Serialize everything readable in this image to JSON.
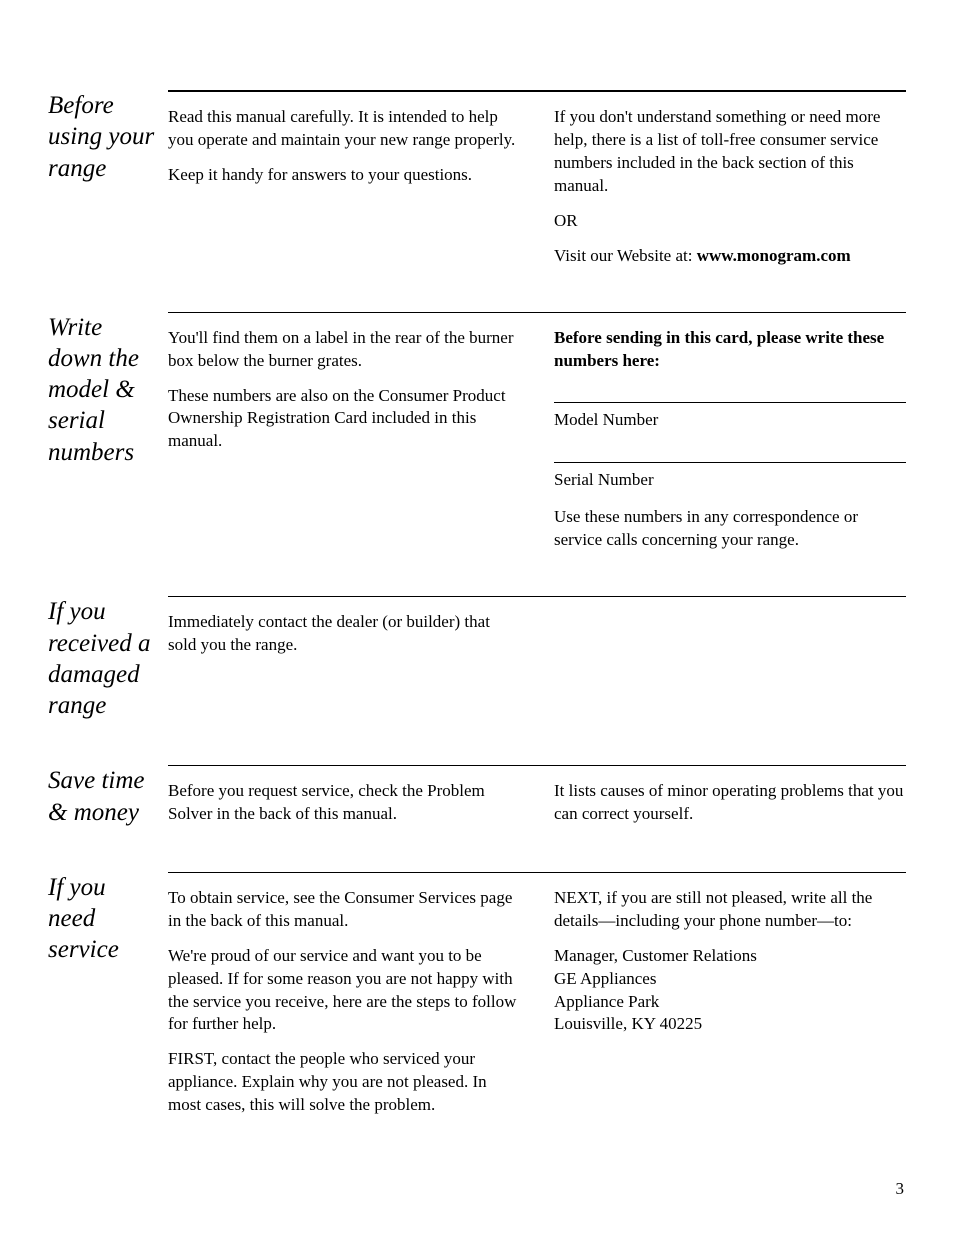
{
  "page_number": "3",
  "sections": [
    {
      "heading": "Before using your range",
      "rule": "thick",
      "left": [
        "Read this manual carefully. It is intended to help you operate and maintain your new range properly.",
        "Keep it handy for answers to your questions."
      ],
      "right_parts": {
        "p1": "If you don't understand something or need more help, there is a list of toll-free consumer service numbers included in the back section of this manual.",
        "p2": "OR",
        "p3_prefix": "Visit our Website at: ",
        "p3_bold": "www.monogram.com"
      }
    },
    {
      "heading": "Write down the model & serial numbers",
      "rule": "thin",
      "left": [
        "You'll find them on a label in the rear of the burner box below the burner grates.",
        "These numbers are also on the Consumer Product Ownership Registration Card included in this manual."
      ],
      "right_form": {
        "intro_bold": "Before sending in this card, please write these numbers here:",
        "field1": "Model Number",
        "field2": "Serial Number",
        "footer": "Use these numbers in any correspondence or service calls concerning your range."
      }
    },
    {
      "heading": "If you received a damaged range",
      "rule": "thin",
      "left": [
        "Immediately contact the dealer (or builder) that sold you the range."
      ],
      "right": []
    },
    {
      "heading": "Save time & money",
      "rule": "thin",
      "left": [
        "Before you request service, check the Problem Solver in the back of this manual."
      ],
      "right": [
        "It lists causes of minor operating problems that you can correct yourself."
      ]
    },
    {
      "heading": "If you need service",
      "rule": "thin",
      "left": [
        "To obtain service, see the Consumer Services page in the back of this manual.",
        "We're proud of our service and want you to be pleased. If for some reason you are not happy with the service you receive, here are the steps to follow for further help.",
        "FIRST, contact the people who serviced your appliance. Explain why you are not pleased. In most cases, this will solve the problem."
      ],
      "right_service": {
        "p1": "NEXT, if you are still not pleased, write all the details—including your phone number—to:",
        "addr": [
          "Manager, Customer Relations",
          "GE Appliances",
          "Appliance Park",
          "Louisville, KY 40225"
        ]
      }
    }
  ]
}
